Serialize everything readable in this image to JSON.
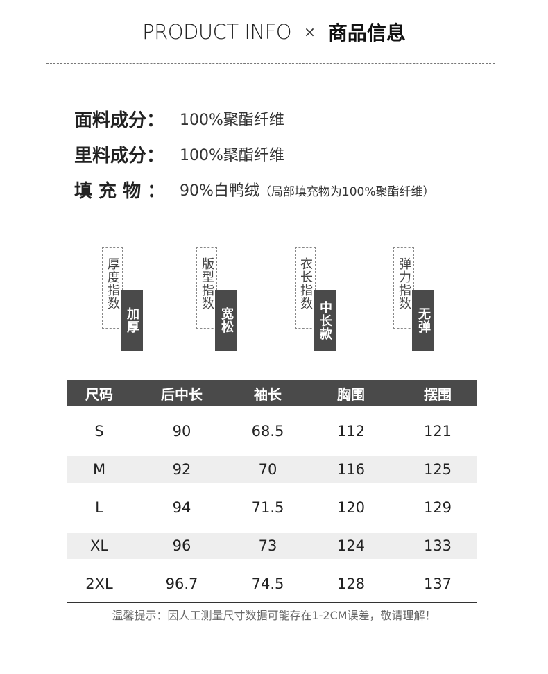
{
  "header": {
    "title_en": "PRODUCT INFO",
    "separator": "×",
    "title_zh": "商品信息"
  },
  "materials": [
    {
      "label": "面料成分：",
      "value": "100%聚酯纤维",
      "note": ""
    },
    {
      "label": "里料成分：",
      "value": "100%聚酯纤维",
      "note": ""
    },
    {
      "label": "填 充 物 ：",
      "value": "90%白鸭绒",
      "note": "（局部填充物为100%聚酯纤维）"
    }
  ],
  "indices": [
    {
      "label": "厚度指数",
      "value": "加厚"
    },
    {
      "label": "版型指数",
      "value": "宽松"
    },
    {
      "label": "衣长指数",
      "value": "中长款"
    },
    {
      "label": "弹力指数",
      "value": "无弹"
    }
  ],
  "size_table": {
    "headers": [
      "尺码",
      "后中长",
      "袖长",
      "胸围",
      "摆围"
    ],
    "rows": [
      [
        "S",
        "90",
        "68.5",
        "112",
        "121"
      ],
      [
        "M",
        "92",
        "70",
        "116",
        "125"
      ],
      [
        "L",
        "94",
        "71.5",
        "120",
        "129"
      ],
      [
        "XL",
        "96",
        "73",
        "124",
        "133"
      ],
      [
        "2XL",
        "96.7",
        "74.5",
        "128",
        "137"
      ]
    ]
  },
  "footnote": "温馨提示：因人工测量尺寸数据可能存在1-2CM误差，敬请理解！",
  "colors": {
    "header_bar": "#4a4a4a",
    "alt_row": "#eeeeee"
  }
}
